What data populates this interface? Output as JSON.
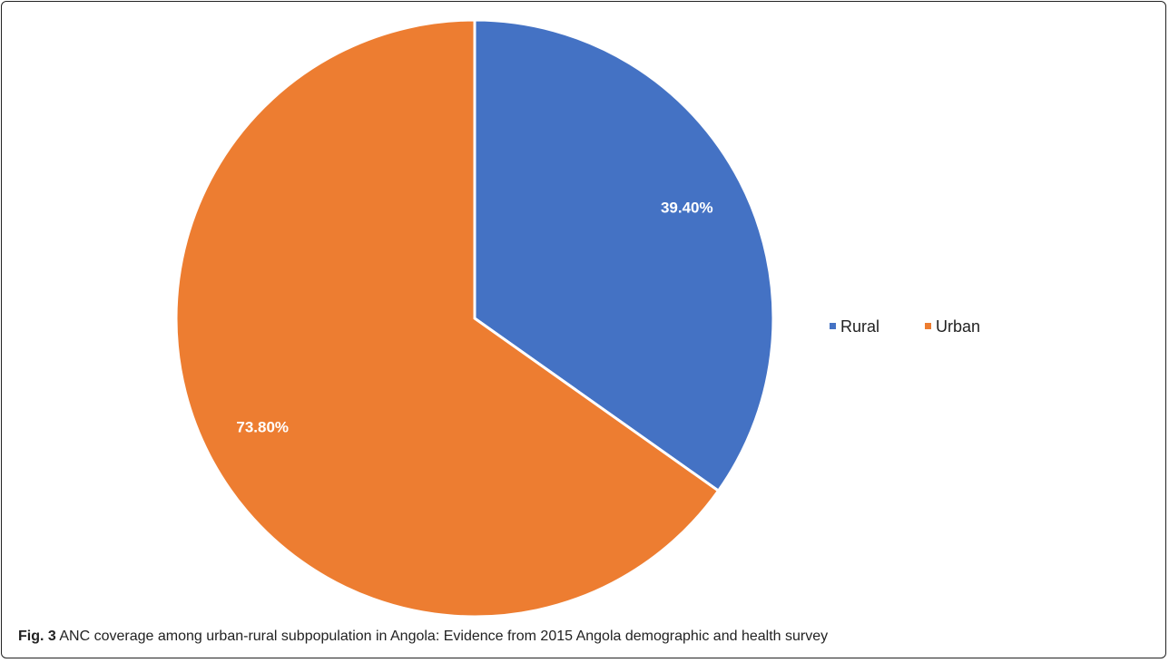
{
  "chart_data": {
    "type": "pie",
    "slices": [
      {
        "label": "Rural",
        "value": 39.4,
        "display": "39.40%",
        "color": "#4472C4"
      },
      {
        "label": "Urban",
        "value": 73.8,
        "display": "73.80%",
        "color": "#ED7D31"
      }
    ],
    "legend": {
      "position": "right",
      "entries": [
        "Rural",
        "Urban"
      ]
    },
    "label_color": "#ffffff"
  },
  "caption": {
    "label": "Fig. 3",
    "text": "ANC coverage among urban-rural subpopulation in Angola: Evidence from 2015 Angola demographic and health survey"
  }
}
